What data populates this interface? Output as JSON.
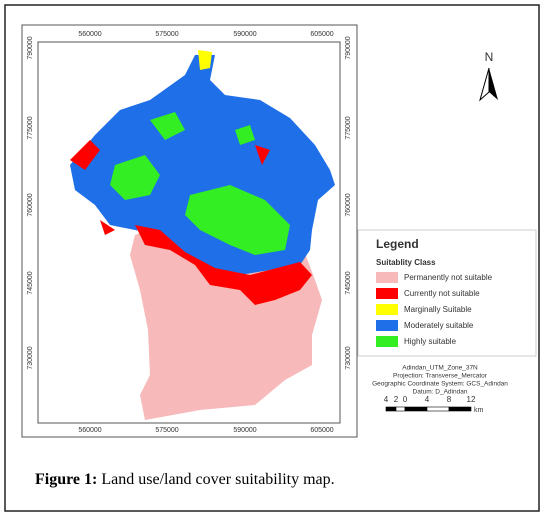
{
  "map": {
    "top_labels": [
      "560000",
      "575000",
      "590000",
      "605000"
    ],
    "bottom_labels": [
      "560000",
      "575000",
      "590000",
      "605000"
    ],
    "left_labels": [
      "790000",
      "775000",
      "760000",
      "745000",
      "730000"
    ],
    "right_labels": [
      "790000",
      "775000",
      "760000",
      "745000",
      "730000"
    ],
    "north": "N"
  },
  "legend": {
    "title": "Legend",
    "subtitle": "Suitablity Class",
    "items": [
      {
        "label": "Permanently not suitable",
        "color": "#f7b9b9"
      },
      {
        "label": "Currently not suitable",
        "color": "#ff0000"
      },
      {
        "label": "Marginally Suitable",
        "color": "#ffff00"
      },
      {
        "label": "Moderately suitable",
        "color": "#1f6fe8"
      },
      {
        "label": "Highly suitable",
        "color": "#33ee22"
      }
    ]
  },
  "projection": [
    "Adindan_UTM_Zone_37N",
    "Projection: Transverse_Mercator",
    "Geographic Coordinate System: GCS_Adindan",
    "Datum: D_Adindan"
  ],
  "scale_bar": {
    "labels": [
      "4",
      "2",
      "0",
      "4",
      "8",
      "12"
    ],
    "unit": "km"
  },
  "caption": {
    "label": "Figure 1:",
    "text": "Land use/land cover suitability map."
  }
}
